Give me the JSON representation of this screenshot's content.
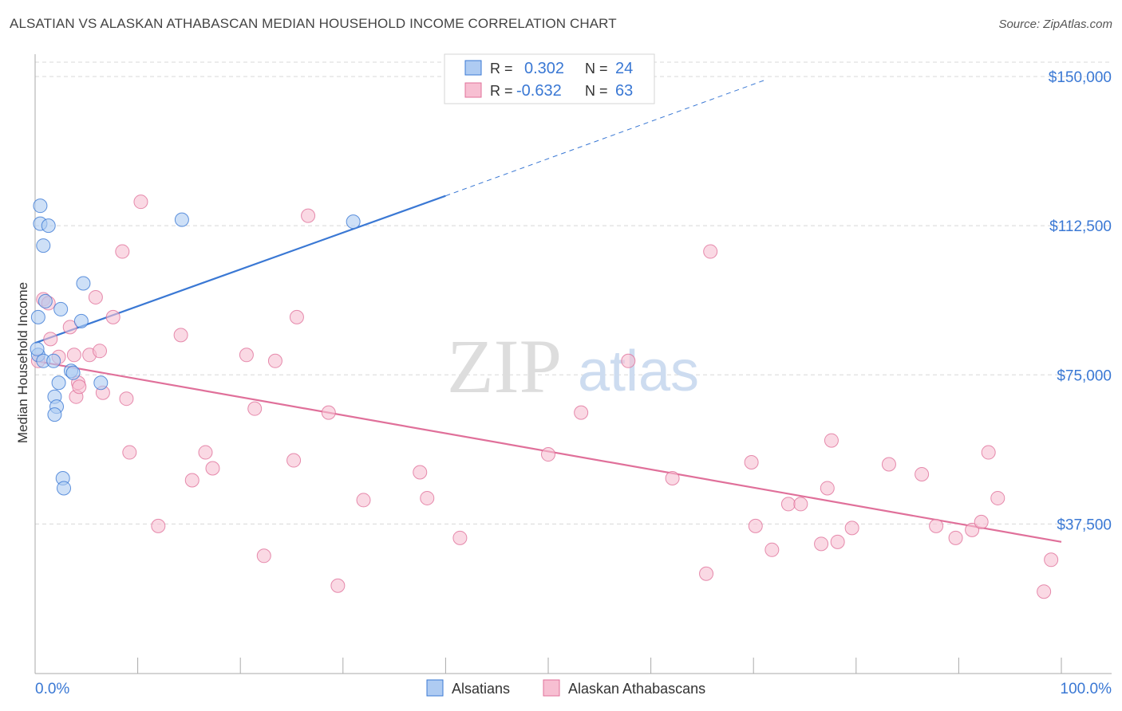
{
  "title": "ALSATIAN VS ALASKAN ATHABASCAN MEDIAN HOUSEHOLD INCOME CORRELATION CHART",
  "source": "Source: ZipAtlas.com",
  "watermark": {
    "zip": "ZIP",
    "atlas": "atlas"
  },
  "colors": {
    "blue": "#3a78d4",
    "blue_fill": "#aecbf2",
    "pink": "#e0709a",
    "pink_fill": "#f7bfd2",
    "axis_text": "#3a78d4",
    "grid": "#d8d8d8"
  },
  "legend_stats": [
    {
      "r_label": "R =",
      "r_value": "0.302",
      "n_label": "N =",
      "n_value": "24"
    },
    {
      "r_label": "R =",
      "r_value": "-0.632",
      "n_label": "N =",
      "n_value": "63"
    }
  ],
  "chart_data": {
    "type": "scatter",
    "xlabel": "",
    "ylabel": "Median Household Income",
    "xlim": [
      0,
      100
    ],
    "ylim": [
      0,
      155000
    ],
    "x_tick_labels": [
      "0.0%",
      "100.0%"
    ],
    "y_ticks": [
      37500,
      75000,
      112500,
      150000
    ],
    "y_tick_labels": [
      "$37,500",
      "$75,000",
      "$112,500",
      "$150,000"
    ],
    "legend": [
      "Alsatians",
      "Alaskan Athabascans"
    ],
    "series": [
      {
        "name": "Alsatians",
        "points": [
          [
            0.5,
            117500
          ],
          [
            0.5,
            113000
          ],
          [
            1.3,
            112500
          ],
          [
            0.8,
            107500
          ],
          [
            0.3,
            89500
          ],
          [
            1.0,
            93500
          ],
          [
            2.5,
            91500
          ],
          [
            4.7,
            98000
          ],
          [
            4.5,
            88500
          ],
          [
            0.3,
            80000
          ],
          [
            0.8,
            78500
          ],
          [
            1.8,
            78500
          ],
          [
            3.5,
            76000
          ],
          [
            6.4,
            73000
          ],
          [
            2.3,
            73000
          ],
          [
            1.9,
            69500
          ],
          [
            2.1,
            67000
          ],
          [
            1.9,
            65000
          ],
          [
            2.7,
            49000
          ],
          [
            2.8,
            46500
          ],
          [
            14.3,
            114000
          ],
          [
            31.0,
            113500
          ],
          [
            3.7,
            75500
          ],
          [
            0.2,
            81500
          ]
        ],
        "trend": {
          "x0": 0,
          "y0": 83000,
          "x1": 40,
          "y1": 120000,
          "dash_to_x": 71,
          "dash_to_y": 149000
        }
      },
      {
        "name": "Alaskan Athabascans",
        "points": [
          [
            0.3,
            78500
          ],
          [
            0.8,
            94000
          ],
          [
            1.3,
            93000
          ],
          [
            1.5,
            84000
          ],
          [
            2.3,
            79500
          ],
          [
            3.4,
            87000
          ],
          [
            3.8,
            80000
          ],
          [
            4.2,
            73000
          ],
          [
            4.0,
            69500
          ],
          [
            4.3,
            72000
          ],
          [
            5.3,
            80000
          ],
          [
            5.9,
            94500
          ],
          [
            6.3,
            81000
          ],
          [
            6.6,
            70500
          ],
          [
            7.6,
            89500
          ],
          [
            8.5,
            106000
          ],
          [
            8.9,
            69000
          ],
          [
            9.2,
            55500
          ],
          [
            10.3,
            118500
          ],
          [
            12.0,
            37000
          ],
          [
            14.2,
            85000
          ],
          [
            15.3,
            48500
          ],
          [
            16.6,
            55500
          ],
          [
            17.3,
            51500
          ],
          [
            20.6,
            80000
          ],
          [
            21.4,
            66500
          ],
          [
            22.3,
            29500
          ],
          [
            23.4,
            78500
          ],
          [
            25.2,
            53500
          ],
          [
            25.5,
            89500
          ],
          [
            26.6,
            115000
          ],
          [
            28.6,
            65500
          ],
          [
            29.5,
            22000
          ],
          [
            32.0,
            43500
          ],
          [
            37.5,
            50500
          ],
          [
            38.2,
            44000
          ],
          [
            41.4,
            34000
          ],
          [
            50.0,
            55000
          ],
          [
            53.2,
            65500
          ],
          [
            57.8,
            78500
          ],
          [
            62.1,
            49000
          ],
          [
            65.4,
            25000
          ],
          [
            65.8,
            106000
          ],
          [
            69.8,
            53000
          ],
          [
            70.2,
            37000
          ],
          [
            71.8,
            31000
          ],
          [
            73.4,
            42500
          ],
          [
            74.6,
            42500
          ],
          [
            76.6,
            32500
          ],
          [
            77.2,
            46500
          ],
          [
            77.6,
            58500
          ],
          [
            78.2,
            33000
          ],
          [
            79.6,
            36500
          ],
          [
            83.2,
            52500
          ],
          [
            86.4,
            50000
          ],
          [
            87.8,
            37000
          ],
          [
            89.7,
            34000
          ],
          [
            91.3,
            36000
          ],
          [
            92.2,
            38000
          ],
          [
            92.9,
            55500
          ],
          [
            93.8,
            44000
          ],
          [
            99.0,
            28500
          ],
          [
            98.3,
            20500
          ]
        ],
        "trend": {
          "x0": 0,
          "y0": 78500,
          "x1": 100,
          "y1": 33000
        }
      }
    ]
  }
}
